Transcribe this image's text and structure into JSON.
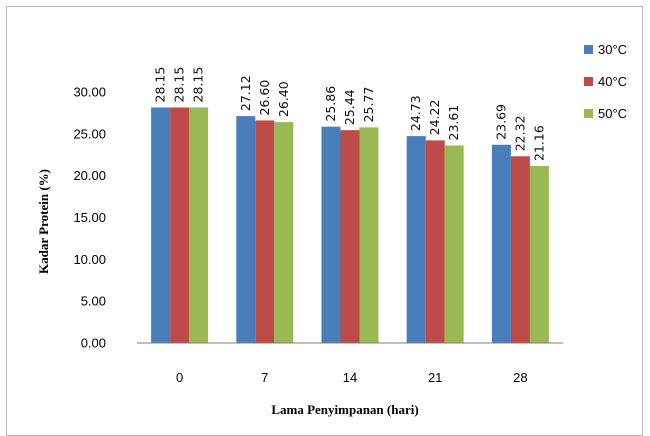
{
  "chart_data": {
    "type": "bar",
    "title": "",
    "xlabel": "Lama Penyimpanan (hari)",
    "ylabel": "Kadar Protein (%)",
    "categories": [
      "0",
      "7",
      "14",
      "21",
      "28"
    ],
    "ylim": [
      0,
      30
    ],
    "yticks": [
      "0.00",
      "5.00",
      "10.00",
      "15.00",
      "20.00",
      "25.00",
      "30.00"
    ],
    "grid": false,
    "legend_position": "top-right",
    "series": [
      {
        "name": "30°C",
        "color": "#4a7ebb",
        "values": [
          28.15,
          27.12,
          25.86,
          24.73,
          23.69
        ],
        "labels": [
          "28.15",
          "27.12",
          "25.86",
          "24.73",
          "23.69"
        ]
      },
      {
        "name": "40°C",
        "color": "#be4b48",
        "values": [
          28.15,
          26.6,
          25.44,
          24.22,
          22.32
        ],
        "labels": [
          "28.15",
          "26.60",
          "25.44",
          "24.22",
          "22.32"
        ]
      },
      {
        "name": "50°C",
        "color": "#98b954",
        "values": [
          28.15,
          26.4,
          25.77,
          23.61,
          21.16
        ],
        "labels": [
          "28.15",
          "26.40",
          "25.77",
          "23.61",
          "21.16"
        ]
      }
    ]
  }
}
